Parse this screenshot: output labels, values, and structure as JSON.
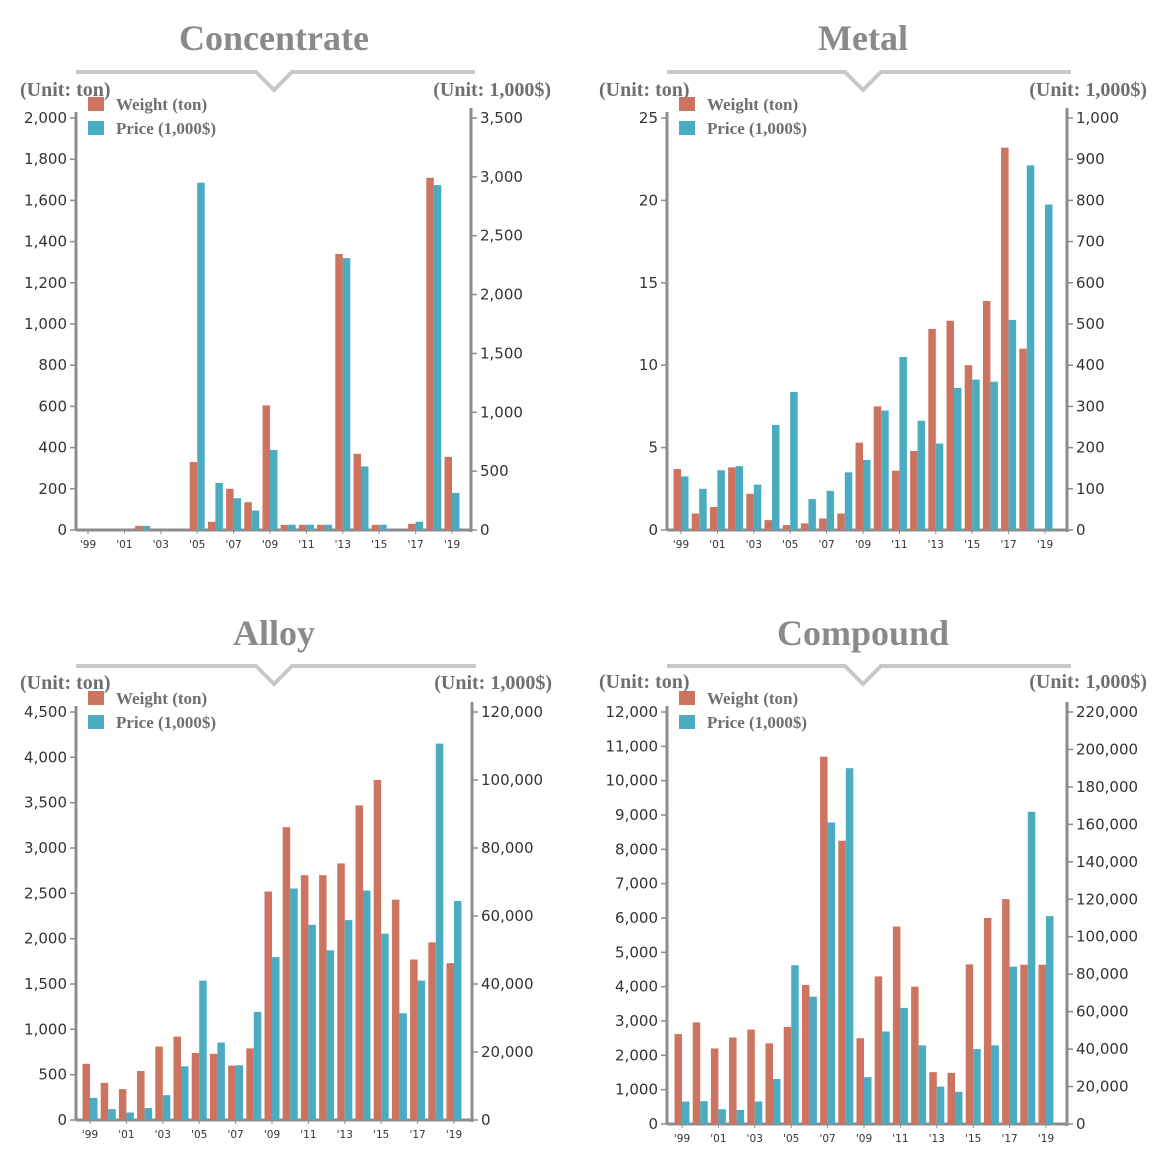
{
  "colors": {
    "weight": "#cd7461",
    "price": "#4bacc1",
    "axis": "#8c8c8c",
    "title": "#8a8a8a"
  },
  "chart_data": [
    {
      "type": "bar",
      "title": "Concentrate",
      "left_unit": "(Unit: ton)",
      "right_unit": "(Unit: 1,000$)",
      "legend": [
        "Weight (ton)",
        "Price (1,000$)"
      ],
      "legend_position": "top-left",
      "categories": [
        "'99",
        "'00",
        "'01",
        "'02",
        "'03",
        "'04",
        "'05",
        "'06",
        "'07",
        "'08",
        "'09",
        "'10",
        "'11",
        "'12",
        "'13",
        "'14",
        "'15",
        "'16",
        "'17",
        "'18",
        "'19"
      ],
      "x_tick_labels": [
        "'99",
        "'01",
        "'03",
        "'05",
        "'07",
        "'09",
        "'11",
        "'13",
        "'15",
        "'17",
        "'19"
      ],
      "y_left": {
        "min": 0,
        "max": 2000,
        "ticks": [
          0,
          200,
          400,
          600,
          800,
          1000,
          1200,
          1400,
          1600,
          1800,
          2000
        ],
        "tick_labels": [
          "0",
          "200",
          "400",
          "600",
          "800",
          "1,000",
          "1,200",
          "1,400",
          "1,600",
          "1,800",
          "2,000"
        ]
      },
      "y_right": {
        "min": 0,
        "max": 3500,
        "ticks": [
          0,
          500,
          1000,
          1500,
          2000,
          2500,
          3000,
          3500
        ],
        "tick_labels": [
          "0",
          "500",
          "1,000",
          "1,500",
          "2,000",
          "2,500",
          "3,000",
          "3,500"
        ]
      },
      "series": [
        {
          "name": "Weight (ton)",
          "axis": "left",
          "values": [
            0,
            0,
            0,
            20,
            0,
            0,
            330,
            40,
            200,
            135,
            605,
            25,
            25,
            25,
            1340,
            370,
            25,
            0,
            30,
            1710,
            355
          ]
        },
        {
          "name": "Price (1,000$)",
          "axis": "right",
          "values": [
            0,
            0,
            0,
            35,
            0,
            0,
            2950,
            400,
            270,
            165,
            680,
            45,
            45,
            45,
            2310,
            540,
            45,
            0,
            70,
            2930,
            315
          ]
        }
      ]
    },
    {
      "type": "bar",
      "title": "Metal",
      "left_unit": "(Unit: ton)",
      "right_unit": "(Unit: 1,000$)",
      "legend": [
        "Weight (ton)",
        "Price (1,000$)"
      ],
      "legend_position": "top-left",
      "categories": [
        "'99",
        "'00",
        "'01",
        "'02",
        "'03",
        "'04",
        "'05",
        "'06",
        "'07",
        "'08",
        "'09",
        "'10",
        "'11",
        "'12",
        "'13",
        "'14",
        "'15",
        "'16",
        "'17",
        "'18",
        "'19"
      ],
      "x_tick_labels": [
        "'99",
        "'01",
        "'03",
        "'05",
        "'07",
        "'09",
        "'11",
        "'13",
        "'15",
        "'17",
        "'19"
      ],
      "y_left": {
        "min": 0,
        "max": 25,
        "ticks": [
          0,
          5,
          10,
          15,
          20,
          25
        ],
        "tick_labels": [
          "0",
          "5",
          "10",
          "15",
          "20",
          "25"
        ]
      },
      "y_right": {
        "min": 0,
        "max": 1000,
        "ticks": [
          0,
          100,
          200,
          300,
          400,
          500,
          600,
          700,
          800,
          900,
          1000
        ],
        "tick_labels": [
          "0",
          "100",
          "200",
          "300",
          "400",
          "500",
          "600",
          "700",
          "800",
          "900",
          "1,000"
        ]
      },
      "series": [
        {
          "name": "Weight (ton)",
          "axis": "left",
          "values": [
            3.7,
            1.0,
            1.4,
            3.8,
            2.2,
            0.6,
            0.3,
            0.4,
            0.7,
            1.0,
            5.3,
            7.5,
            3.6,
            4.8,
            12.2,
            12.7,
            10.0,
            13.9,
            23.2,
            11.0,
            0
          ]
        },
        {
          "name": "Price (1,000$)",
          "axis": "right",
          "values": [
            130,
            100,
            145,
            155,
            110,
            255,
            335,
            75,
            95,
            140,
            170,
            290,
            420,
            265,
            210,
            345,
            365,
            360,
            510,
            885,
            790
          ]
        }
      ]
    },
    {
      "type": "bar",
      "title": "Alloy",
      "left_unit": "(Unit: ton)",
      "right_unit": "(Unit: 1,000$)",
      "legend": [
        "Weight (ton)",
        "Price (1,000$)"
      ],
      "legend_position": "top-left",
      "categories": [
        "'99",
        "'00",
        "'01",
        "'02",
        "'03",
        "'04",
        "'05",
        "'06",
        "'07",
        "'08",
        "'09",
        "'10",
        "'11",
        "'12",
        "'13",
        "'14",
        "'15",
        "'16",
        "'17",
        "'18",
        "'19"
      ],
      "x_tick_labels": [
        "'99",
        "'01",
        "'03",
        "'05",
        "'07",
        "'09",
        "'11",
        "'13",
        "'15",
        "'17",
        "'19"
      ],
      "y_left": {
        "min": 0,
        "max": 4500,
        "ticks": [
          0,
          500,
          1000,
          1500,
          2000,
          2500,
          3000,
          3500,
          4000,
          4500
        ],
        "tick_labels": [
          "0",
          "500",
          "1,000",
          "1,500",
          "2,000",
          "2,500",
          "3,000",
          "3,500",
          "4,000",
          "4,500"
        ]
      },
      "y_right": {
        "min": 0,
        "max": 120000,
        "ticks": [
          0,
          20000,
          40000,
          60000,
          80000,
          100000,
          120000
        ],
        "tick_labels": [
          "0",
          "20,000",
          "40,000",
          "60,000",
          "80,000",
          "100,000",
          "120,000"
        ]
      },
      "series": [
        {
          "name": "Weight (ton)",
          "axis": "left",
          "values": [
            620,
            410,
            340,
            540,
            810,
            920,
            740,
            730,
            600,
            790,
            2520,
            3230,
            2700,
            2700,
            2830,
            3470,
            3750,
            2430,
            1770,
            1960,
            1730
          ]
        },
        {
          "name": "Price (1,000$)",
          "axis": "right",
          "values": [
            6500,
            3200,
            2200,
            3500,
            7300,
            15800,
            41000,
            22800,
            16100,
            31800,
            47900,
            68100,
            57400,
            49900,
            58800,
            67500,
            54800,
            31400,
            41000,
            110700,
            64400
          ]
        }
      ]
    },
    {
      "type": "bar",
      "title": "Compound",
      "left_unit": "(Unit: ton)",
      "right_unit": "(Unit: 1,000$)",
      "legend": [
        "Weight (ton)",
        "Price (1,000$)"
      ],
      "legend_position": "top-left",
      "categories": [
        "'99",
        "'00",
        "'01",
        "'02",
        "'03",
        "'04",
        "'05",
        "'06",
        "'07",
        "'08",
        "'09",
        "'10",
        "'11",
        "'12",
        "'13",
        "'14",
        "'15",
        "'16",
        "'17",
        "'18",
        "'19"
      ],
      "x_tick_labels": [
        "'99",
        "'01",
        "'03",
        "'05",
        "'07",
        "'09",
        "'11",
        "'13",
        "'15",
        "'17",
        "'19"
      ],
      "y_left": {
        "min": 0,
        "max": 12000,
        "ticks": [
          0,
          1000,
          2000,
          3000,
          4000,
          5000,
          6000,
          7000,
          8000,
          9000,
          10000,
          11000,
          12000
        ],
        "tick_labels": [
          "0",
          "1,000",
          "2,000",
          "3,000",
          "4,000",
          "5,000",
          "6,000",
          "7,000",
          "8,000",
          "9,000",
          "10,000",
          "11,000",
          "12,000"
        ]
      },
      "y_right": {
        "min": 0,
        "max": 220000,
        "ticks": [
          0,
          20000,
          40000,
          60000,
          80000,
          100000,
          120000,
          140000,
          160000,
          180000,
          200000,
          220000
        ],
        "tick_labels": [
          "0",
          "20,000",
          "40,000",
          "60,000",
          "80,000",
          "100,000",
          "120,000",
          "140,000",
          "160,000",
          "180,000",
          "200,000",
          "220,000"
        ]
      },
      "series": [
        {
          "name": "Weight (ton)",
          "axis": "left",
          "values": [
            2620,
            2960,
            2200,
            2520,
            2750,
            2350,
            2830,
            4050,
            10700,
            8250,
            2500,
            4300,
            5750,
            4000,
            1510,
            1490,
            4650,
            6000,
            6550,
            4640,
            4640
          ]
        },
        {
          "name": "Price (1,000$)",
          "axis": "right",
          "values": [
            12000,
            12200,
            7900,
            7500,
            12000,
            24000,
            84800,
            68000,
            161000,
            190000,
            25000,
            49400,
            62000,
            42000,
            20000,
            17200,
            40000,
            42000,
            84000,
            166700,
            111000
          ]
        }
      ]
    }
  ]
}
